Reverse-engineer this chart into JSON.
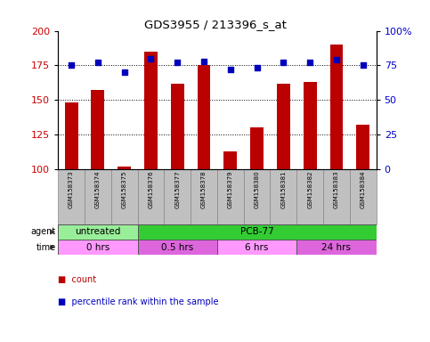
{
  "title": "GDS3955 / 213396_s_at",
  "samples": [
    "GSM158373",
    "GSM158374",
    "GSM158375",
    "GSM158376",
    "GSM158377",
    "GSM158378",
    "GSM158379",
    "GSM158380",
    "GSM158381",
    "GSM158382",
    "GSM158383",
    "GSM158384"
  ],
  "counts": [
    148,
    157,
    102,
    185,
    162,
    175,
    113,
    130,
    162,
    163,
    190,
    132
  ],
  "percentiles": [
    75,
    77,
    70,
    80,
    77,
    78,
    72,
    73,
    77,
    77,
    79,
    75
  ],
  "bar_base": 100,
  "bar_color": "#BB0000",
  "dot_color": "#0000BB",
  "ylim_left": [
    100,
    200
  ],
  "ylim_right": [
    0,
    100
  ],
  "yticks_left": [
    100,
    125,
    150,
    175,
    200
  ],
  "yticks_right": [
    0,
    25,
    50,
    75,
    100
  ],
  "ytick_labels_right": [
    "0",
    "25",
    "50",
    "75",
    "100%"
  ],
  "grid_values": [
    125,
    150,
    175
  ],
  "agent_row": [
    {
      "label": "untreated",
      "start": 0,
      "end": 3,
      "color": "#99EE99"
    },
    {
      "label": "PCB-77",
      "start": 3,
      "end": 12,
      "color": "#33CC33"
    }
  ],
  "time_row": [
    {
      "label": "0 hrs",
      "start": 0,
      "end": 3,
      "color": "#FF99FF"
    },
    {
      "label": "0.5 hrs",
      "start": 3,
      "end": 6,
      "color": "#DD66DD"
    },
    {
      "label": "6 hrs",
      "start": 6,
      "end": 9,
      "color": "#FF99FF"
    },
    {
      "label": "24 hrs",
      "start": 9,
      "end": 12,
      "color": "#DD66DD"
    }
  ],
  "label_color_left": "#CC0000",
  "label_color_right": "#0000CC",
  "bar_width": 0.5,
  "sample_col_bg": "#C0C0C0",
  "plot_bg": "#FFFFFF",
  "fig_bg": "#FFFFFF"
}
